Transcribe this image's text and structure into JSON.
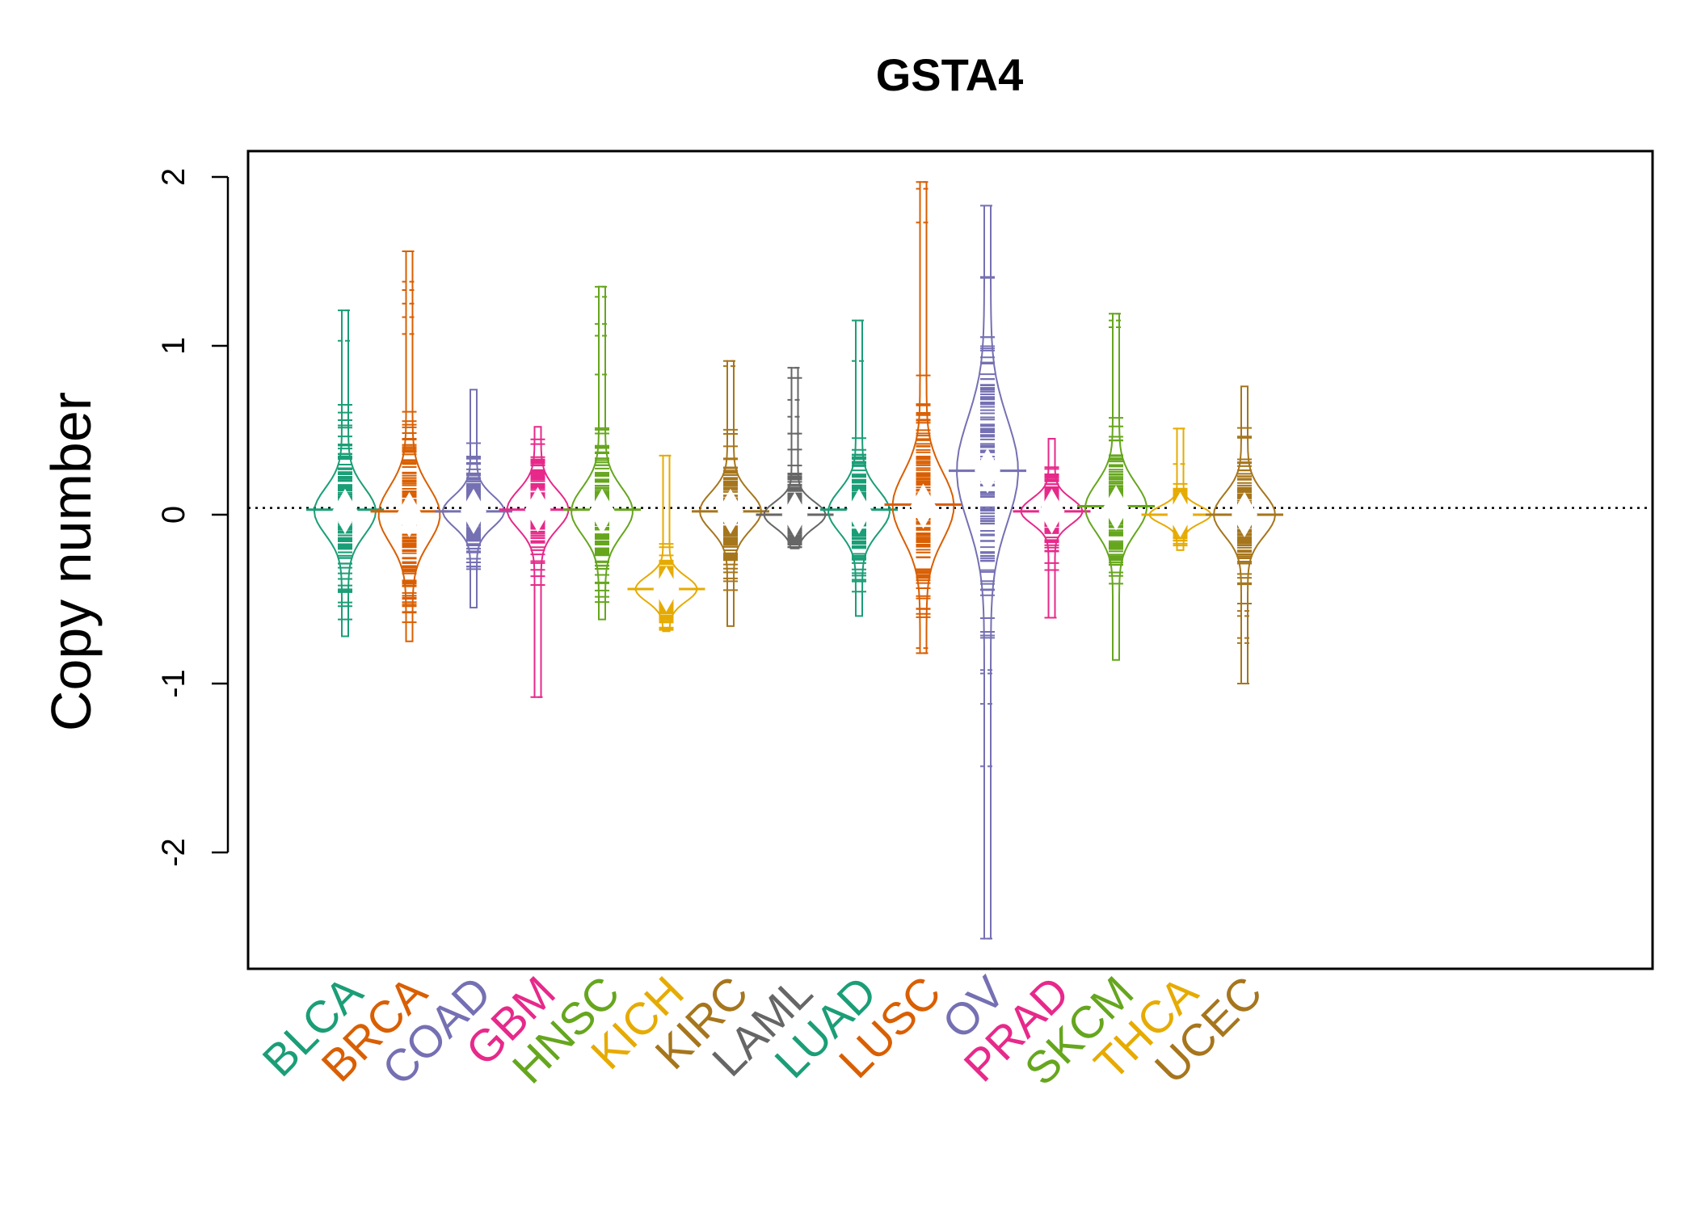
{
  "chart_data": {
    "type": "beanplot",
    "title": "GSTA4",
    "xlabel": "",
    "ylabel": "Copy number",
    "ylim": [
      -2.68,
      2.1
    ],
    "yticks": [
      -2,
      -1,
      0,
      1,
      2
    ],
    "ytick_labels": [
      "-2",
      "-1",
      "0",
      "1",
      "2"
    ],
    "overall_median": 0.04,
    "grid": false,
    "legend": "none",
    "categories": [
      "BLCA",
      "BRCA",
      "COAD",
      "GBM",
      "HNSC",
      "KICH",
      "KIRC",
      "LAML",
      "LUAD",
      "LUSC",
      "OV",
      "PRAD",
      "SKCM",
      "THCA",
      "UCEC"
    ],
    "colors": [
      "#1B9E77",
      "#D95F02",
      "#7570B3",
      "#E7298A",
      "#66A61E",
      "#E6AB02",
      "#A6761D",
      "#666666",
      "#1B9E77",
      "#D95F02",
      "#7570B3",
      "#E7298A",
      "#66A61E",
      "#E6AB02",
      "#A6761D"
    ],
    "series": [
      {
        "category": "BLCA",
        "min": -0.72,
        "max": 1.21,
        "median": 0.03,
        "density_mode": 0.02,
        "outliers": [
          1.03,
          1.21
        ]
      },
      {
        "category": "BRCA",
        "min": -0.75,
        "max": 1.56,
        "median": 0.02,
        "density_mode": 0.0,
        "outliers": [
          1.07,
          1.17,
          1.25,
          1.33,
          1.38,
          1.56
        ]
      },
      {
        "category": "COAD",
        "min": -0.55,
        "max": 0.74,
        "median": 0.02,
        "density_mode": 0.02,
        "outliers": []
      },
      {
        "category": "GBM",
        "min": -1.08,
        "max": 0.52,
        "median": 0.03,
        "density_mode": 0.03,
        "outliers": [
          -1.08
        ]
      },
      {
        "category": "HNSC",
        "min": -0.62,
        "max": 1.35,
        "median": 0.03,
        "density_mode": 0.02,
        "outliers": [
          0.83,
          1.06,
          1.13,
          1.29,
          1.35
        ]
      },
      {
        "category": "KICH",
        "min": -0.69,
        "max": 0.35,
        "median": -0.44,
        "density_mode": -0.44,
        "outliers": [
          0.35
        ]
      },
      {
        "category": "KIRC",
        "min": -0.66,
        "max": 0.91,
        "median": 0.02,
        "density_mode": 0.02,
        "outliers": [
          0.88,
          0.91
        ]
      },
      {
        "category": "LAML",
        "min": -0.2,
        "max": 0.87,
        "median": 0.0,
        "density_mode": 0.0,
        "outliers": [
          0.48,
          0.58,
          0.68,
          0.87
        ]
      },
      {
        "category": "LUAD",
        "min": -0.6,
        "max": 1.15,
        "median": 0.03,
        "density_mode": 0.02,
        "outliers": [
          0.91,
          1.15
        ]
      },
      {
        "category": "LUSC",
        "min": -0.82,
        "max": 1.97,
        "median": 0.06,
        "density_mode": 0.05,
        "outliers": [
          -0.82,
          -0.79,
          1.73,
          1.93,
          1.97
        ]
      },
      {
        "category": "OV",
        "min": -2.51,
        "max": 1.83,
        "median": 0.26,
        "density_mode": 0.26,
        "outliers": [
          -2.51,
          -1.49,
          -1.12,
          -0.94,
          -0.92,
          1.83
        ]
      },
      {
        "category": "PRAD",
        "min": -0.61,
        "max": 0.45,
        "median": 0.02,
        "density_mode": 0.02,
        "outliers": [
          -0.61
        ]
      },
      {
        "category": "SKCM",
        "min": -0.86,
        "max": 1.19,
        "median": 0.05,
        "density_mode": 0.04,
        "outliers": [
          1.11,
          1.15,
          1.19
        ]
      },
      {
        "category": "THCA",
        "min": -0.21,
        "max": 0.51,
        "median": 0.0,
        "density_mode": 0.0,
        "outliers": [
          0.3,
          0.51
        ]
      },
      {
        "category": "UCEC",
        "min": -1.0,
        "max": 0.76,
        "median": 0.0,
        "density_mode": 0.0,
        "outliers": [
          -1.0,
          -0.76,
          -0.73,
          -0.6,
          -0.57
        ]
      }
    ]
  }
}
